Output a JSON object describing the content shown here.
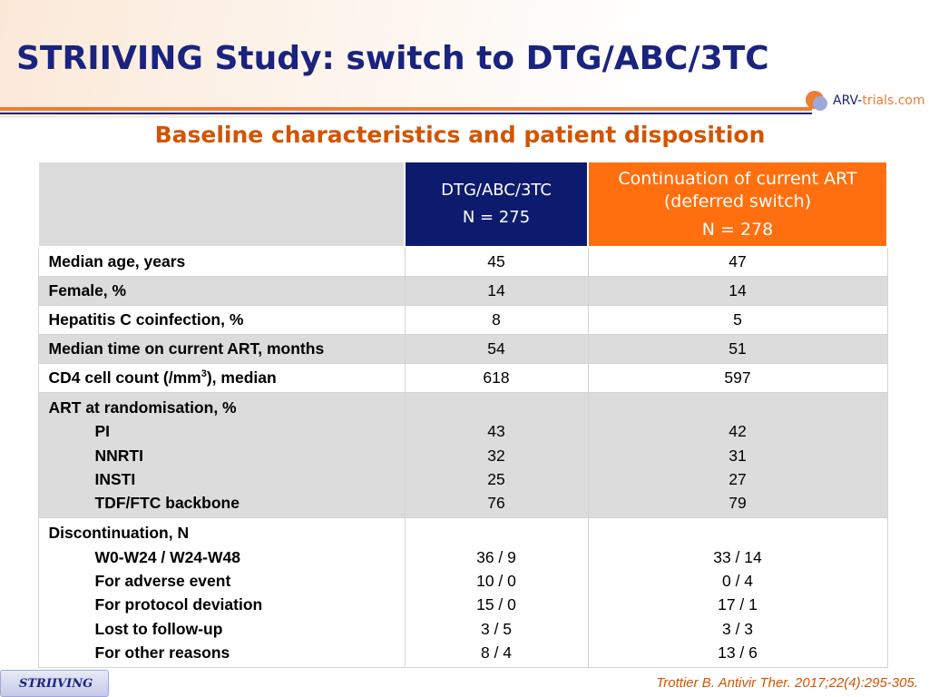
{
  "slide": {
    "title": "STRIIVING Study: switch to DTG/ABC/3TC",
    "subtitle": "Baseline characteristics and patient disposition",
    "logo_text_main": "ARV-",
    "logo_text_accent": "trials",
    "logo_text_suffix": ".com",
    "footer_tab": "STRIIVING",
    "citation": "Trottier B. Antivir Ther. 2017;22(4):295-305."
  },
  "table": {
    "col1_header": "DTG/ABC/3TC",
    "col1_n": "N = 275",
    "col2_header_line1": "Continuation of current ART",
    "col2_header_line2": "(deferred switch)",
    "col2_n": "N = 278",
    "rows": [
      {
        "label": "Median age, years",
        "a": "45",
        "b": "47"
      },
      {
        "label": "Female, %",
        "a": "14",
        "b": "14"
      },
      {
        "label": "Hepatitis C coinfection, %",
        "a": "8",
        "b": "5"
      },
      {
        "label": "Median time on current ART, months",
        "a": "54",
        "b": "51"
      },
      {
        "label_pre": "CD4 cell count (/mm",
        "label_sup": "3",
        "label_post": "), median",
        "a": "618",
        "b": "597"
      }
    ],
    "art": {
      "heading": "ART at randomisation, %",
      "items": [
        {
          "label": "PI",
          "a": "43",
          "b": "42"
        },
        {
          "label": "NNRTI",
          "a": "32",
          "b": "31"
        },
        {
          "label": "INSTI",
          "a": "25",
          "b": "27"
        },
        {
          "label": "TDF/FTC backbone",
          "a": "76",
          "b": "79"
        }
      ]
    },
    "disc": {
      "heading": "Discontinuation, N",
      "items": [
        {
          "label": "W0-W24 / W24-W48",
          "a": "36 / 9",
          "b": "33 / 14"
        },
        {
          "label": "For adverse event",
          "a": "10 / 0",
          "b": "0 / 4"
        },
        {
          "label": "For protocol deviation",
          "a": "15 / 0",
          "b": "17 / 1"
        },
        {
          "label": "Lost to follow-up",
          "a": "3 / 5",
          "b": "3 / 3"
        },
        {
          "label": "For other reasons",
          "a": "8 / 4",
          "b": "13 / 6"
        }
      ]
    }
  },
  "colors": {
    "title": "#1a237e",
    "accent_orange": "#ff6f0f",
    "header_navy": "#0d1b6e",
    "row_gray": "#dcdcdc"
  }
}
